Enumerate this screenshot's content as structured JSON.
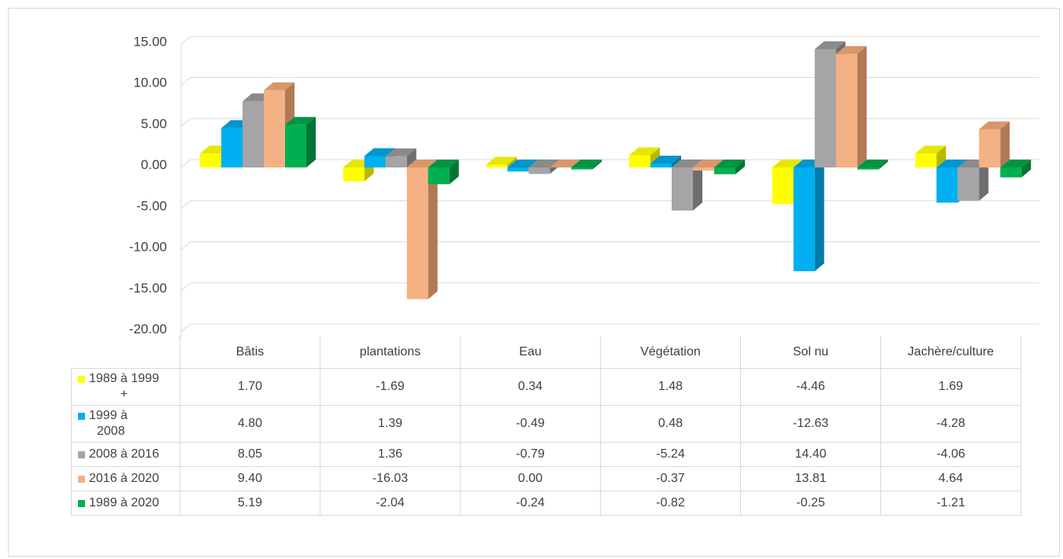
{
  "chart_data": {
    "type": "bar",
    "title": "",
    "xlabel": "",
    "ylabel": "",
    "ylim": [
      -20,
      15
    ],
    "y_ticks": [
      "15.00",
      "10.00",
      "5.00",
      "0.00",
      "-5.00",
      "-10.00",
      "-15.00",
      "-20.00"
    ],
    "grid": true,
    "style": "3d clustered column with data table",
    "categories": [
      "Bâtis",
      "plantations",
      "Eau",
      "Végétation",
      "Sol nu",
      "Jachère/culture"
    ],
    "series": [
      {
        "name": "1989 à 1999 +",
        "color": "#ffff00",
        "side_color": "#b8b800",
        "top_color": "#e6e600",
        "values": [
          1.7,
          -1.69,
          0.34,
          1.48,
          -4.46,
          1.69
        ],
        "labels": [
          "1.70",
          "-1.69",
          "0.34",
          "1.48",
          "-4.46",
          "1.69"
        ]
      },
      {
        "name": "1999 à 2008",
        "color": "#00b0f0",
        "side_color": "#007aa8",
        "top_color": "#0096cc",
        "values": [
          4.8,
          1.39,
          -0.49,
          0.48,
          -12.63,
          -4.28
        ],
        "labels": [
          "4.80",
          "1.39",
          "-0.49",
          "0.48",
          "-12.63",
          "-4.28"
        ]
      },
      {
        "name": "2008 à 2016",
        "color": "#a5a5a5",
        "side_color": "#6e6e6e",
        "top_color": "#8a8a8a",
        "values": [
          8.05,
          1.36,
          -0.79,
          -5.24,
          14.4,
          -4.06
        ],
        "labels": [
          "8.05",
          "1.36",
          "-0.79",
          "-5.24",
          "14.40",
          "-4.06"
        ]
      },
      {
        "name": "2016 à 2020",
        "color": "#f4b183",
        "side_color": "#b07a55",
        "top_color": "#d9966a",
        "values": [
          9.4,
          -16.03,
          0.0,
          -0.37,
          13.81,
          4.64
        ],
        "labels": [
          "9.40",
          "-16.03",
          "0.00",
          "-0.37",
          "13.81",
          "4.64"
        ]
      },
      {
        "name": "1989 à 2020",
        "color": "#00b050",
        "side_color": "#007535",
        "top_color": "#009444",
        "values": [
          5.19,
          -2.04,
          -0.24,
          -0.82,
          -0.25,
          -1.21
        ],
        "labels": [
          "5.19",
          "-2.04",
          "-0.24",
          "-0.82",
          "-0.25",
          "-1.21"
        ]
      }
    ]
  },
  "legend_rows": [
    {
      "line1": "1989 à 1999",
      "line2": "+"
    },
    {
      "line1": "1999 à",
      "line2": "2008"
    },
    {
      "line1": "2008 à 2016",
      "line2": ""
    },
    {
      "line1": "2016 à 2020",
      "line2": ""
    },
    {
      "line1": "1989 à 2020",
      "line2": ""
    }
  ]
}
